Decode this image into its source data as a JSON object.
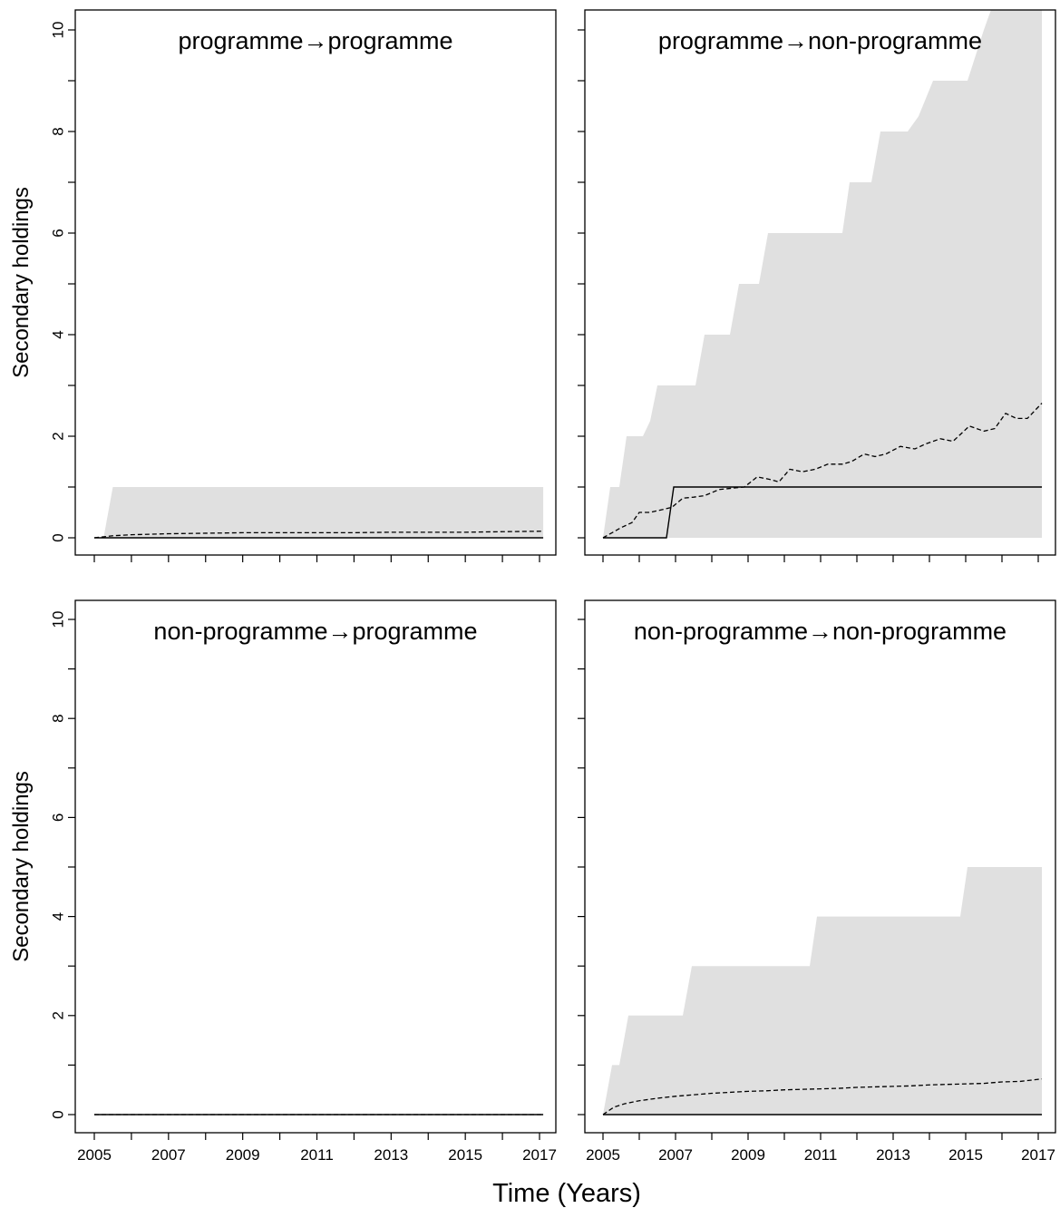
{
  "chart_data": {
    "type": "line",
    "xlabel": "Time (Years)",
    "ylabel": "Secondary holdings",
    "xlim": [
      2005,
      2017
    ],
    "ylim": [
      0,
      10
    ],
    "x_ticks": [
      2005,
      2006,
      2007,
      2008,
      2009,
      2010,
      2011,
      2012,
      2013,
      2014,
      2015,
      2016,
      2017
    ],
    "x_tick_labels": [
      "2005",
      "2007",
      "2009",
      "2011",
      "2013",
      "2015",
      "2017"
    ],
    "y_ticks": [
      0,
      1,
      2,
      3,
      4,
      5,
      6,
      7,
      8,
      9,
      10
    ],
    "y_tick_labels": [
      "0",
      "2",
      "4",
      "6",
      "8",
      "10"
    ],
    "colors": {
      "band": "#e0e0e0",
      "line": "#000000"
    },
    "panels": [
      {
        "title": "programme→programme",
        "band_upper": {
          "x": [
            2005,
            2005.25,
            2005.5,
            2017.1
          ],
          "y": [
            0,
            0,
            1,
            1
          ]
        },
        "observed": {
          "x": [
            2005,
            2017.1
          ],
          "y": [
            0,
            0
          ]
        },
        "mean": {
          "x": [
            2005,
            2005.5,
            2006,
            2006.5,
            2007,
            2008,
            2009,
            2010,
            2011,
            2012,
            2013,
            2014,
            2015,
            2016,
            2017.1
          ],
          "y": [
            0,
            0.04,
            0.06,
            0.07,
            0.08,
            0.09,
            0.1,
            0.1,
            0.1,
            0.1,
            0.11,
            0.11,
            0.11,
            0.12,
            0.13
          ]
        }
      },
      {
        "title": "programme→non-programme",
        "band_upper": {
          "x": [
            2005,
            2005.2,
            2005.45,
            2005.65,
            2006.1,
            2006.3,
            2006.5,
            2007,
            2007.55,
            2007.8,
            2008.5,
            2008.75,
            2009.3,
            2009.55,
            2010.5,
            2010.65,
            2011.6,
            2011.8,
            2012.4,
            2012.65,
            2013.4,
            2013.7,
            2014.1,
            2015.05,
            2015.5,
            2015.75,
            2017.1
          ],
          "y": [
            0,
            1,
            1,
            2,
            2,
            2.3,
            3,
            3,
            3,
            4,
            4,
            5,
            5,
            6,
            6,
            6,
            6,
            7,
            7,
            8,
            8,
            8.3,
            9,
            9,
            10,
            10.5,
            10.5
          ]
        },
        "observed": {
          "x": [
            2005,
            2006.75,
            2006.95,
            2017.1
          ],
          "y": [
            0,
            0,
            1,
            1
          ]
        },
        "mean": {
          "x": [
            2005,
            2005.25,
            2005.5,
            2005.8,
            2006,
            2006.3,
            2006.6,
            2006.9,
            2007.2,
            2007.5,
            2007.8,
            2008.2,
            2008.6,
            2008.9,
            2009.25,
            2009.6,
            2009.85,
            2010.15,
            2010.5,
            2010.85,
            2011.2,
            2011.6,
            2011.85,
            2012.2,
            2012.5,
            2012.8,
            2013.2,
            2013.6,
            2013.9,
            2014.3,
            2014.65,
            2015.1,
            2015.5,
            2015.8,
            2016.1,
            2016.4,
            2016.7,
            2017.1
          ],
          "y": [
            0,
            0.1,
            0.2,
            0.3,
            0.5,
            0.5,
            0.55,
            0.6,
            0.78,
            0.8,
            0.83,
            0.95,
            0.98,
            1.0,
            1.2,
            1.15,
            1.1,
            1.35,
            1.3,
            1.35,
            1.45,
            1.45,
            1.5,
            1.65,
            1.6,
            1.65,
            1.8,
            1.75,
            1.85,
            1.95,
            1.9,
            2.2,
            2.1,
            2.15,
            2.45,
            2.35,
            2.35,
            2.65
          ]
        }
      },
      {
        "title": "non-programme→programme",
        "band_upper": null,
        "observed": {
          "x": [
            2005,
            2017.1
          ],
          "y": [
            0,
            0
          ]
        },
        "mean": {
          "x": [
            2005,
            2017.1
          ],
          "y": [
            0,
            0
          ]
        }
      },
      {
        "title": "non-programme→non-programme",
        "band_upper": {
          "x": [
            2005,
            2005.25,
            2005.45,
            2005.7,
            2007.2,
            2007.45,
            2010.7,
            2010.9,
            2014.85,
            2015.05,
            2017.1
          ],
          "y": [
            0,
            1,
            1,
            2,
            2,
            3,
            3,
            4,
            4,
            5,
            5
          ]
        },
        "observed": {
          "x": [
            2005,
            2017.1
          ],
          "y": [
            0,
            0
          ]
        },
        "mean": {
          "x": [
            2005,
            2005.3,
            2005.6,
            2006,
            2006.5,
            2007,
            2007.5,
            2008,
            2008.5,
            2009,
            2009.5,
            2010,
            2010.5,
            2011,
            2011.5,
            2012,
            2012.5,
            2013,
            2013.5,
            2014,
            2014.5,
            2015,
            2015.5,
            2016,
            2016.5,
            2017.1
          ],
          "y": [
            0,
            0.15,
            0.22,
            0.28,
            0.33,
            0.37,
            0.4,
            0.43,
            0.45,
            0.47,
            0.48,
            0.5,
            0.51,
            0.52,
            0.53,
            0.55,
            0.56,
            0.57,
            0.58,
            0.6,
            0.61,
            0.62,
            0.63,
            0.66,
            0.67,
            0.72
          ]
        }
      }
    ]
  }
}
